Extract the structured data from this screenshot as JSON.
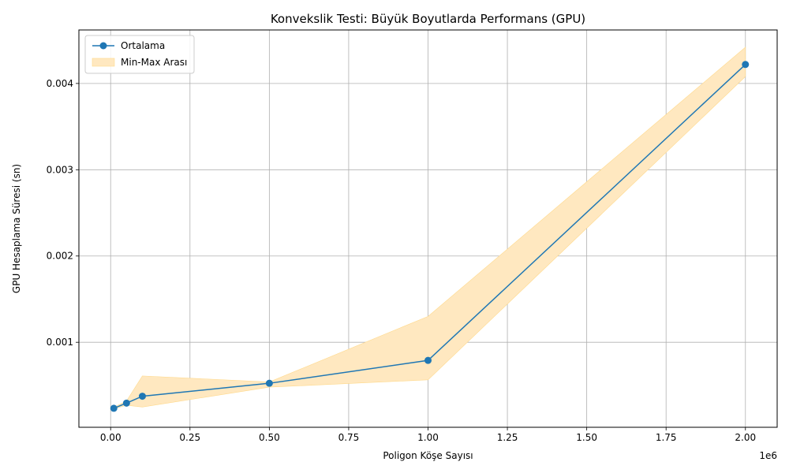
{
  "chart_data": {
    "type": "line",
    "title": "Konvekslik Testi: Büyük Boyutlarda Performans (GPU)",
    "xlabel": "Poligon Köşe Sayısı",
    "ylabel": "GPU Hesaplama Süresi (sn)",
    "x_offset_label": "1e6",
    "x": [
      10000,
      50000,
      100000,
      500000,
      1000000,
      2000000
    ],
    "xlim": [
      -100000,
      2100000
    ],
    "ylim": [
      1.5e-05,
      0.00462
    ],
    "x_ticks": [
      0,
      250000,
      500000,
      750000,
      1000000,
      1250000,
      1500000,
      1750000,
      2000000
    ],
    "x_tick_labels": [
      "0.00",
      "0.25",
      "0.50",
      "0.75",
      "1.00",
      "1.25",
      "1.50",
      "1.75",
      "2.00"
    ],
    "y_ticks": [
      0.001,
      0.002,
      0.003,
      0.004
    ],
    "y_tick_labels": [
      "0.001",
      "0.002",
      "0.003",
      "0.004"
    ],
    "grid": true,
    "legend_position": "top-left",
    "series": [
      {
        "name": "Ortalama",
        "kind": "line",
        "color": "#1f77b4",
        "values": [
          0.000235,
          0.000295,
          0.000375,
          0.000525,
          0.00079,
          0.00422
        ]
      },
      {
        "name": "Min-Max Arası",
        "kind": "band",
        "color": "#ffe8c0",
        "edge_color": "#ffd98a",
        "lower": [
          0.00023,
          0.00027,
          0.00025,
          0.00048,
          0.000565,
          0.00408
        ],
        "upper": [
          0.000245,
          0.00032,
          0.00061,
          0.00054,
          0.0013,
          0.00442
        ]
      }
    ]
  }
}
